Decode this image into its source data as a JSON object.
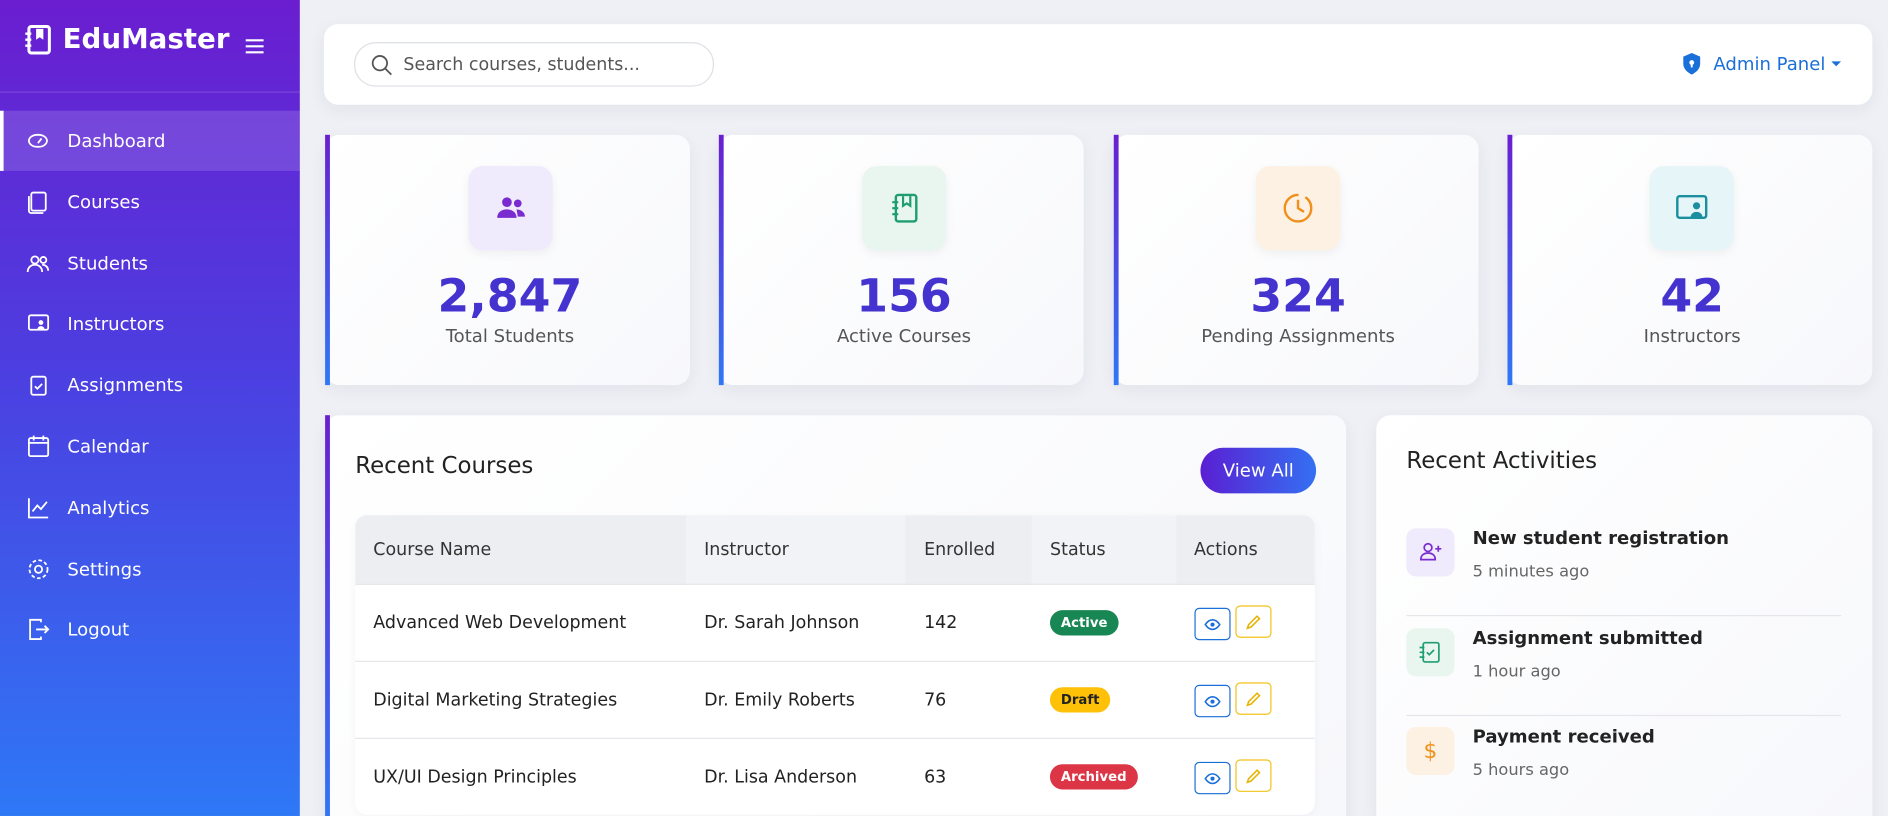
{
  "sidebar": {
    "brand": "EduMaster",
    "nav": [
      "Dashboard",
      "Courses",
      "Students",
      "Instructors",
      "Assignments",
      "Calendar",
      "Analytics",
      "Settings",
      "Logout"
    ]
  },
  "topbar": {
    "search_placeholder": "Search courses, students...",
    "user_menu": "Admin Panel"
  },
  "stats": [
    {
      "value": "2,847",
      "label": "Total Students"
    },
    {
      "value": "156",
      "label": "Active Courses"
    },
    {
      "value": "324",
      "label": "Pending Assignments"
    },
    {
      "value": "42",
      "label": "Instructors"
    }
  ],
  "recent_courses": {
    "title": "Recent Courses",
    "button": "View All",
    "table": {
      "headers": [
        "Course Name",
        "Instructor",
        "Enrolled",
        "Status",
        "Actions"
      ],
      "rows": [
        [
          "Advanced Web Development",
          "Dr. Sarah Johnson",
          "142",
          "Active"
        ],
        [
          "Digital Marketing Strategies",
          "Dr. Emily Roberts",
          "76",
          "Draft"
        ],
        [
          "UX/UI Design Principles",
          "Dr. Lisa Anderson",
          "63",
          "Archived"
        ]
      ]
    }
  },
  "recent_activities": {
    "title": "Recent Activities",
    "items": [
      {
        "title": "New student registration",
        "time": "5 minutes ago"
      },
      {
        "title": "Assignment submitted",
        "time": "1 hour ago"
      },
      {
        "title": "Payment received",
        "time": "5 hours ago"
      }
    ]
  }
}
